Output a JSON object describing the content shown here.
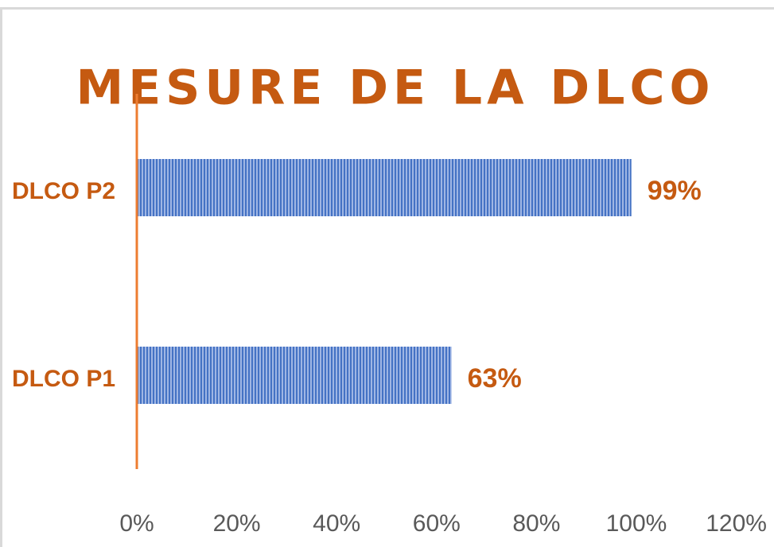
{
  "chart_data": {
    "type": "hbar",
    "title": "MESURE DE LA DLCO",
    "categories": [
      "DLCO P2",
      "DLCO P1"
    ],
    "values": [
      99,
      63
    ],
    "value_labels": [
      "99%",
      "63%"
    ],
    "color": "#4472c4",
    "xlim": [
      0,
      120
    ],
    "xticks": [
      {
        "value": 0,
        "label": "0%"
      },
      {
        "value": 20,
        "label": "20%"
      },
      {
        "value": 40,
        "label": "40%"
      },
      {
        "value": 60,
        "label": "60%"
      },
      {
        "value": 80,
        "label": "80%"
      },
      {
        "value": 100,
        "label": "100%"
      },
      {
        "value": 120,
        "label": "120%"
      }
    ]
  }
}
